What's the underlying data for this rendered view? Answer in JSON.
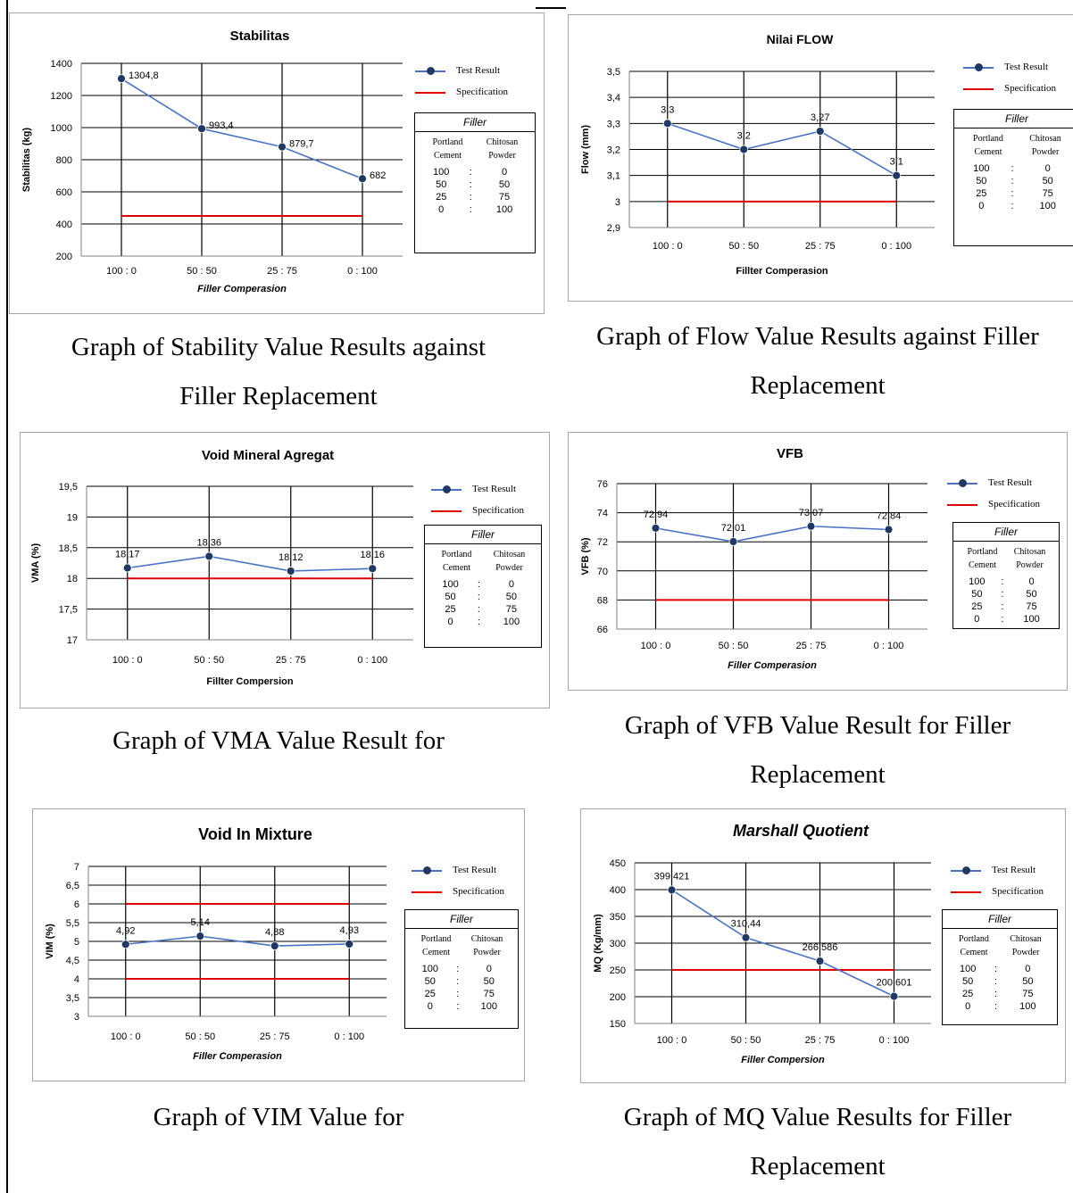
{
  "colors": {
    "series": "#4a72c4",
    "marker": "#1f3864",
    "spec": "#e00000",
    "grid": "#000000"
  },
  "legend": {
    "test": "Test Result",
    "spec": "Specification"
  },
  "filler": {
    "title": "Filler",
    "col1": [
      "Portland",
      "Cement"
    ],
    "col2": [
      "Chitosan",
      "Powder"
    ],
    "rows": [
      [
        "100",
        ":",
        "0"
      ],
      [
        "50",
        ":",
        "50"
      ],
      [
        "25",
        ":",
        "75"
      ],
      [
        "0",
        ":",
        "100"
      ]
    ]
  },
  "captions": {
    "stability": [
      "Graph of Stability Value Results against",
      "Filler Replacement"
    ],
    "flow": [
      "Graph of Flow Value Results against Filler",
      "Replacement"
    ],
    "vma": [
      "Graph of VMA Value Result for"
    ],
    "vfb": [
      "Graph of VFB Value Result for Filler",
      "Replacement"
    ],
    "vim": [
      "Graph of VIM Value for"
    ],
    "mq": [
      "Graph of MQ Value Results for Filler",
      "Replacement"
    ]
  },
  "chart_data": [
    {
      "id": "stability",
      "type": "line",
      "title": "Stabilitas",
      "xlabel": "Filler Comperasion",
      "ylabel": "Stabilitas (kg)",
      "categories": [
        "100 : 0",
        "50 : 50",
        "25 : 75",
        "0 : 100"
      ],
      "ylim": [
        200,
        1400
      ],
      "yticks": [
        "200",
        "400",
        "600",
        "800",
        "1000",
        "1200",
        "1400"
      ],
      "series": [
        {
          "name": "Test Result",
          "values": [
            1304.8,
            993.4,
            879.7,
            682
          ],
          "labels": [
            "1304,8",
            "993,4",
            "879,7",
            "682"
          ]
        }
      ],
      "specification": [
        450
      ],
      "grid": true,
      "legend": "right"
    },
    {
      "id": "flow",
      "type": "line",
      "title": "Nilai FLOW",
      "xlabel": "Fillter Comperasion",
      "ylabel": "Flow (mm)",
      "categories": [
        "100 : 0",
        "50 : 50",
        "25 : 75",
        "0 : 100"
      ],
      "ylim": [
        2.9,
        3.5
      ],
      "yticks": [
        "2,9",
        "3",
        "3,1",
        "3,2",
        "3,3",
        "3,4",
        "3,5"
      ],
      "series": [
        {
          "name": "Test Result",
          "values": [
            3.3,
            3.2,
            3.27,
            3.1
          ],
          "labels": [
            "3,3",
            "3,2",
            "3,27",
            "3,1"
          ]
        }
      ],
      "specification": [
        3.0
      ],
      "grid": true,
      "legend": "right"
    },
    {
      "id": "vma",
      "type": "line",
      "title": "Void Mineral Agregat",
      "xlabel": "Fillter Compersion",
      "ylabel": "VMA (%)",
      "categories": [
        "100 : 0",
        "50 : 50",
        "25 : 75",
        "0 : 100"
      ],
      "ylim": [
        17,
        19.5
      ],
      "yticks": [
        "17",
        "17,5",
        "18",
        "18,5",
        "19",
        "19,5"
      ],
      "series": [
        {
          "name": "Test Result",
          "values": [
            18.17,
            18.36,
            18.12,
            18.16
          ],
          "labels": [
            "18,17",
            "18,36",
            "18,12",
            "18,16"
          ]
        }
      ],
      "specification": [
        18.0
      ],
      "grid": true,
      "legend": "right"
    },
    {
      "id": "vfb",
      "type": "line",
      "title": "VFB",
      "xlabel": "Filler Comperasion",
      "ylabel": "VFB (%)",
      "categories": [
        "100 : 0",
        "50 : 50",
        "25 : 75",
        "0 : 100"
      ],
      "ylim": [
        66,
        76
      ],
      "yticks": [
        "66",
        "68",
        "70",
        "72",
        "74",
        "76"
      ],
      "series": [
        {
          "name": "Test Result",
          "values": [
            72.94,
            72.01,
            73.07,
            72.84
          ],
          "labels": [
            "72,94",
            "72,01",
            "73,07",
            "72,84"
          ]
        }
      ],
      "specification": [
        68
      ],
      "grid": true,
      "legend": "right"
    },
    {
      "id": "vim",
      "type": "line",
      "title": "Void In Mixture",
      "xlabel": "Filler Comperasion",
      "ylabel": "VIM (%)",
      "categories": [
        "100 : 0",
        "50 : 50",
        "25 : 75",
        "0 : 100"
      ],
      "ylim": [
        3,
        7
      ],
      "yticks": [
        "3",
        "3,5",
        "4",
        "4,5",
        "5",
        "5,5",
        "6",
        "6,5",
        "7"
      ],
      "series": [
        {
          "name": "Test Result",
          "values": [
            4.92,
            5.14,
            4.88,
            4.93
          ],
          "labels": [
            "4,92",
            "5,14",
            "4,88",
            "4,93"
          ]
        }
      ],
      "specification": [
        4,
        6
      ],
      "grid": true,
      "legend": "right"
    },
    {
      "id": "mq",
      "type": "line",
      "title": "Marshall Quotient",
      "xlabel": "Filler Compersion",
      "ylabel": "MQ (Kg/mm)",
      "categories": [
        "100 : 0",
        "50 : 50",
        "25 : 75",
        "0 : 100"
      ],
      "ylim": [
        150,
        450
      ],
      "yticks": [
        "150",
        "200",
        "250",
        "300",
        "350",
        "400",
        "450"
      ],
      "series": [
        {
          "name": "Test Result",
          "values": [
            399.421,
            310.44,
            266.586,
            200.601
          ],
          "labels": [
            "399,421",
            "310,44",
            "266,586",
            "200,601"
          ]
        }
      ],
      "specification": [
        250
      ],
      "grid": true,
      "legend": "right"
    }
  ]
}
